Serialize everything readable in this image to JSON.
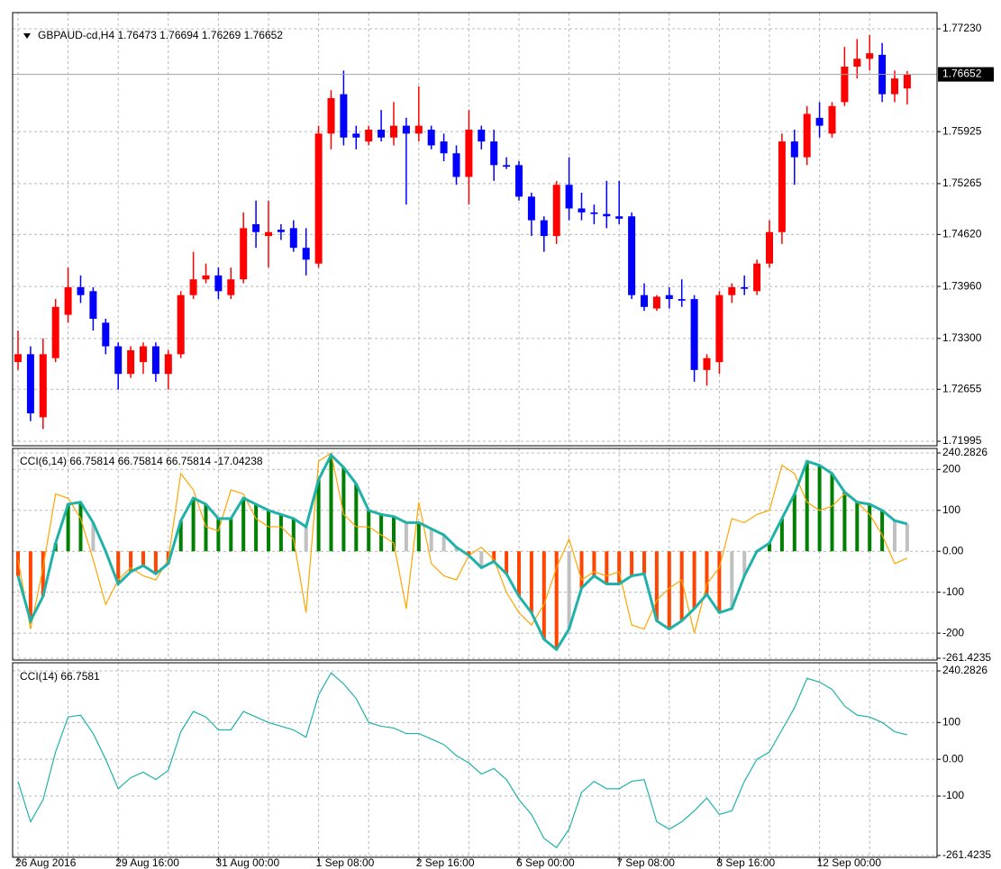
{
  "chart_data": [
    {
      "type": "candlestick",
      "title": "GBPAUD-cd,H4  1.76473 1.76694 1.76269 1.76652",
      "categories": [
        "26 Aug 2016",
        null,
        null,
        null,
        null,
        null,
        null,
        null,
        "29 Aug 16:00",
        null,
        null,
        null,
        null,
        null,
        null,
        null,
        "31 Aug 00:00",
        null,
        null,
        null,
        null,
        null,
        null,
        null,
        "1 Sep 08:00",
        null,
        null,
        null,
        null,
        null,
        null,
        null,
        "2 Sep 16:00",
        null,
        null,
        null,
        null,
        null,
        null,
        null,
        "6 Sep 00:00",
        null,
        null,
        null,
        null,
        null,
        null,
        null,
        "7 Sep 08:00",
        null,
        null,
        null,
        null,
        null,
        null,
        null,
        "8 Sep 16:00",
        null,
        null,
        null,
        null,
        null,
        null,
        null,
        "12 Sep 00:00",
        null,
        null,
        null,
        null,
        null,
        null,
        null
      ],
      "open": [
        1.73,
        1.731,
        1.723,
        1.7305,
        1.736,
        1.7395,
        1.739,
        1.735,
        1.732,
        1.7285,
        1.73,
        1.732,
        1.7285,
        1.731,
        1.7385,
        1.7405,
        1.741,
        1.7385,
        1.7405,
        1.7475,
        1.746,
        1.7468,
        1.747,
        1.7445,
        1.7425,
        1.759,
        1.764,
        1.759,
        1.758,
        1.7595,
        1.7585,
        1.76,
        1.759,
        1.7595,
        1.758,
        1.7565,
        1.7535,
        1.7595,
        1.758,
        1.755,
        1.755,
        1.751,
        1.748,
        1.746,
        1.7525,
        1.7495,
        1.749,
        1.7488,
        1.7485,
        1.7485,
        1.7385,
        1.7368,
        1.7385,
        1.738,
        1.738,
        1.729,
        1.73,
        1.7385,
        1.7395,
        1.739,
        1.7425,
        1.7465,
        1.758,
        1.756,
        1.761,
        1.759,
        1.763,
        1.7675,
        1.7685,
        1.769,
        1.764,
        1.76473
      ],
      "high": [
        1.734,
        1.732,
        1.733,
        1.738,
        1.742,
        1.741,
        1.7395,
        1.7355,
        1.7325,
        1.732,
        1.7325,
        1.7325,
        1.7315,
        1.739,
        1.744,
        1.7425,
        1.742,
        1.742,
        1.749,
        1.7505,
        1.7505,
        1.7475,
        1.748,
        1.747,
        1.76,
        1.7645,
        1.767,
        1.76,
        1.76,
        1.762,
        1.763,
        1.761,
        1.765,
        1.76,
        1.759,
        1.7575,
        1.762,
        1.76,
        1.7595,
        1.756,
        1.7555,
        1.7515,
        1.7485,
        1.753,
        1.756,
        1.7515,
        1.75,
        1.753,
        1.753,
        1.749,
        1.74,
        1.7385,
        1.7395,
        1.7405,
        1.7385,
        1.731,
        1.739,
        1.74,
        1.741,
        1.743,
        1.748,
        1.759,
        1.7595,
        1.7625,
        1.763,
        1.763,
        1.77,
        1.771,
        1.7715,
        1.7705,
        1.767,
        1.76694
      ],
      "low": [
        1.729,
        1.7225,
        1.7215,
        1.73,
        1.735,
        1.7375,
        1.734,
        1.731,
        1.7265,
        1.728,
        1.7285,
        1.7275,
        1.7265,
        1.7305,
        1.738,
        1.74,
        1.738,
        1.738,
        1.74,
        1.7445,
        1.742,
        1.7455,
        1.744,
        1.741,
        1.742,
        1.757,
        1.7575,
        1.757,
        1.7575,
        1.758,
        1.7575,
        1.75,
        1.758,
        1.757,
        1.7555,
        1.7525,
        1.75,
        1.757,
        1.753,
        1.7545,
        1.7505,
        1.746,
        1.744,
        1.745,
        1.748,
        1.748,
        1.7475,
        1.747,
        1.7475,
        1.738,
        1.7365,
        1.7365,
        1.7368,
        1.737,
        1.7275,
        1.727,
        1.7285,
        1.7375,
        1.7385,
        1.7385,
        1.742,
        1.745,
        1.7525,
        1.755,
        1.7585,
        1.7585,
        1.7625,
        1.766,
        1.767,
        1.763,
        1.763,
        1.76269
      ],
      "close": [
        1.731,
        1.7235,
        1.731,
        1.737,
        1.7395,
        1.7385,
        1.7355,
        1.732,
        1.7285,
        1.7315,
        1.732,
        1.7285,
        1.731,
        1.7385,
        1.7405,
        1.741,
        1.739,
        1.7405,
        1.747,
        1.7465,
        1.7465,
        1.7465,
        1.7445,
        1.743,
        1.759,
        1.7635,
        1.7585,
        1.7585,
        1.7595,
        1.7585,
        1.76,
        1.759,
        1.76,
        1.7575,
        1.7565,
        1.7535,
        1.7595,
        1.758,
        1.755,
        1.7548,
        1.751,
        1.748,
        1.746,
        1.7525,
        1.7495,
        1.749,
        1.7488,
        1.7485,
        1.7482,
        1.7385,
        1.737,
        1.7383,
        1.738,
        1.7378,
        1.729,
        1.7305,
        1.7385,
        1.7395,
        1.7393,
        1.7425,
        1.7465,
        1.758,
        1.756,
        1.7615,
        1.76,
        1.7625,
        1.7675,
        1.7685,
        1.7692,
        1.764,
        1.766,
        1.76652
      ],
      "colors": {
        "up": "#ff0000",
        "down": "#0000ff"
      },
      "ylim": [
        1.71995,
        1.7723
      ],
      "yticks": [
        {
          "value": 1.7723,
          "label": "1.77230"
        },
        1.75925,
        1.75265,
        {
          "value": 1.7462,
          "label": "1.74620"
        },
        {
          "value": 1.7396,
          "label": "1.73960"
        },
        {
          "value": 1.733,
          "label": "1.73300"
        },
        1.72655,
        1.71995
      ],
      "current_price": {
        "value": 1.76652,
        "label": "1.76652"
      },
      "grid": true
    },
    {
      "type": "cci_histogram",
      "title": "CCI(6,14) 66.75814 66.75814 66.75814 -17.04238",
      "series": [
        {
          "color": "#20b2aa",
          "values": [
            -60,
            -170,
            -110,
            20,
            115,
            120,
            70,
            0,
            -80,
            -50,
            -35,
            -55,
            -30,
            75,
            130,
            115,
            80,
            80,
            130,
            115,
            100,
            90,
            80,
            60,
            175,
            235,
            205,
            165,
            100,
            90,
            85,
            70,
            70,
            55,
            40,
            10,
            -10,
            -40,
            -25,
            -55,
            -110,
            -150,
            -215,
            -240,
            -190,
            -90,
            -60,
            -80,
            -80,
            -60,
            -55,
            -170,
            -190,
            -170,
            -140,
            -105,
            -150,
            -140,
            -60,
            0,
            20,
            80,
            140,
            220,
            210,
            190,
            145,
            120,
            115,
            100,
            75,
            66.75814
          ]
        },
        {
          "color": "#ffa500",
          "values": [
            -20,
            -190,
            -40,
            140,
            130,
            80,
            -20,
            -130,
            -70,
            -40,
            -60,
            -70,
            -20,
            190,
            150,
            60,
            50,
            150,
            140,
            80,
            60,
            60,
            30,
            -150,
            220,
            240,
            90,
            60,
            60,
            40,
            20,
            -140,
            120,
            -30,
            -60,
            -70,
            -10,
            10,
            -20,
            -100,
            -150,
            -180,
            -130,
            -40,
            30,
            -70,
            -50,
            -60,
            -50,
            -180,
            -190,
            -120,
            -90,
            -70,
            -200,
            -80,
            -40,
            80,
            70,
            90,
            100,
            210,
            190,
            120,
            100,
            110,
            140,
            120,
            90,
            40,
            -30,
            -17.04238
          ]
        }
      ],
      "bar_colors": {
        "up": "#008000",
        "down": "#ff4500",
        "neutral": "#c0c0c0"
      },
      "ylim": [
        -261.4235,
        240.2826
      ],
      "yticks": [
        {
          "value": 240.2826,
          "label": "240.2826"
        },
        200,
        100,
        {
          "value": 0,
          "label": "0.00"
        },
        -100,
        -200,
        {
          "value": -261.4235,
          "label": "-261.4235"
        }
      ],
      "grid": true
    },
    {
      "type": "line",
      "title": "CCI(14) 66.7581",
      "series": [
        {
          "color": "#20b2aa",
          "values": [
            -60,
            -170,
            -110,
            20,
            115,
            120,
            70,
            0,
            -80,
            -50,
            -35,
            -55,
            -30,
            75,
            130,
            115,
            80,
            80,
            130,
            115,
            100,
            90,
            80,
            60,
            175,
            235,
            205,
            165,
            100,
            90,
            85,
            70,
            70,
            55,
            40,
            10,
            -10,
            -40,
            -25,
            -55,
            -110,
            -150,
            -215,
            -240,
            -190,
            -90,
            -60,
            -80,
            -80,
            -60,
            -55,
            -170,
            -190,
            -170,
            -140,
            -105,
            -150,
            -140,
            -60,
            0,
            20,
            80,
            140,
            220,
            210,
            190,
            145,
            120,
            115,
            100,
            75,
            66.7581
          ]
        }
      ],
      "ylim": [
        -261.4235,
        240.2826
      ],
      "yticks": [
        {
          "value": 240.2826,
          "label": "240.2826"
        },
        100,
        {
          "value": 0,
          "label": "0.00"
        },
        -100,
        {
          "value": -261.4235,
          "label": "-261.4235"
        }
      ],
      "grid": true
    }
  ]
}
